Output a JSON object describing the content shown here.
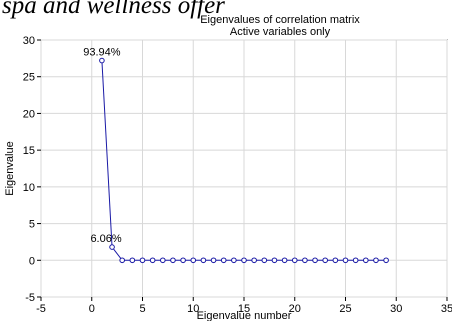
{
  "header_fragment": "spa and wellness offer",
  "chart_data": {
    "type": "line",
    "title": "Eigenvalues of correlation matrix",
    "subtitle": "Active variables only",
    "xlabel": "Eigenvalue number",
    "ylabel": "Eigenvalue",
    "xlim": [
      -5,
      35
    ],
    "ylim": [
      -5,
      30
    ],
    "xticks": [
      -5,
      0,
      5,
      10,
      15,
      20,
      25,
      30,
      35
    ],
    "yticks": [
      -5,
      0,
      5,
      10,
      15,
      20,
      25,
      30
    ],
    "grid": true,
    "x": [
      1,
      2,
      3,
      4,
      5,
      6,
      7,
      8,
      9,
      10,
      11,
      12,
      13,
      14,
      15,
      16,
      17,
      18,
      19,
      20,
      21,
      22,
      23,
      24,
      25,
      26,
      27,
      28,
      29
    ],
    "series": [
      {
        "values": [
          27.2,
          1.8,
          0,
          0,
          0,
          0,
          0,
          0,
          0,
          0,
          0,
          0,
          0,
          0,
          0,
          0,
          0,
          0,
          0,
          0,
          0,
          0,
          0,
          0,
          0,
          0,
          0,
          0,
          0
        ],
        "color": "#1a1aa6"
      }
    ],
    "annotations": [
      {
        "text": "93.94%",
        "x": 1,
        "y": 27.2
      },
      {
        "text": "6.06%",
        "x": 2,
        "y": 1.8
      }
    ]
  }
}
